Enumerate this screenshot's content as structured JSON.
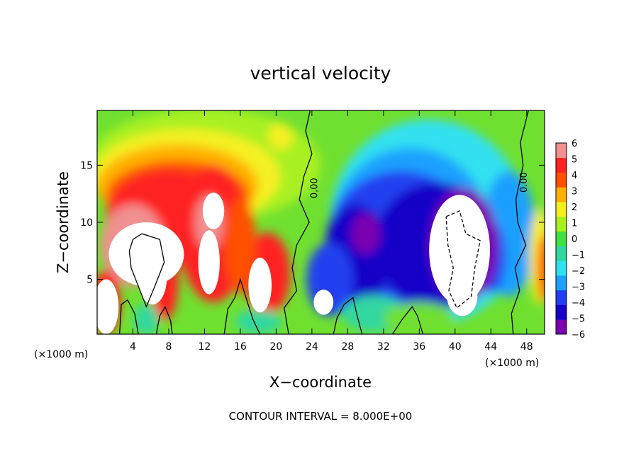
{
  "chart_data": {
    "type": "heatmap",
    "title": "vertical velocity",
    "xlabel": "X−coordinate",
    "ylabel": "Z−coordinate",
    "x_unit_left": "(×1000 m)",
    "x_unit_right": "(×1000 m)",
    "xlim": [
      0,
      50
    ],
    "ylim": [
      0.2,
      19.8
    ],
    "x_ticks": [
      4,
      8,
      12,
      16,
      20,
      24,
      28,
      32,
      36,
      40,
      44,
      48
    ],
    "x_tick_labels": [
      "4",
      "8",
      "12",
      "16",
      "20",
      "24",
      "28",
      "32",
      "36",
      "40",
      "44",
      "48"
    ],
    "y_ticks": [
      5,
      10,
      15
    ],
    "y_tick_labels": [
      "5",
      "10",
      "15"
    ],
    "colorbar": {
      "min": -6,
      "max": 6,
      "tick_values": [
        6,
        5,
        4,
        3,
        2,
        1,
        0,
        -1,
        -2,
        -3,
        -4,
        -5,
        -6
      ],
      "tick_labels": [
        "6",
        "5",
        "4",
        "3",
        "2",
        "1",
        "0",
        "−1",
        "−2",
        "−3",
        "−4",
        "−5",
        "−6"
      ],
      "colors": [
        "#7a00b0",
        "#1800c8",
        "#2040f0",
        "#1ea0ff",
        "#30e0f0",
        "#30d8a0",
        "#40e040",
        "#a8f020",
        "#f4f020",
        "#ffb000",
        "#ff5000",
        "#ff2020",
        "#f09090"
      ]
    },
    "contour_labels": [
      {
        "text": "0.00",
        "x": 24.6,
        "z": 13.0
      },
      {
        "text": "0.00",
        "x": 48.0,
        "z": 13.5
      }
    ],
    "grid": false,
    "legend_position": "right"
  },
  "footer": {
    "contour_interval": "CONTOUR INTERVAL = 8.000E+00"
  }
}
